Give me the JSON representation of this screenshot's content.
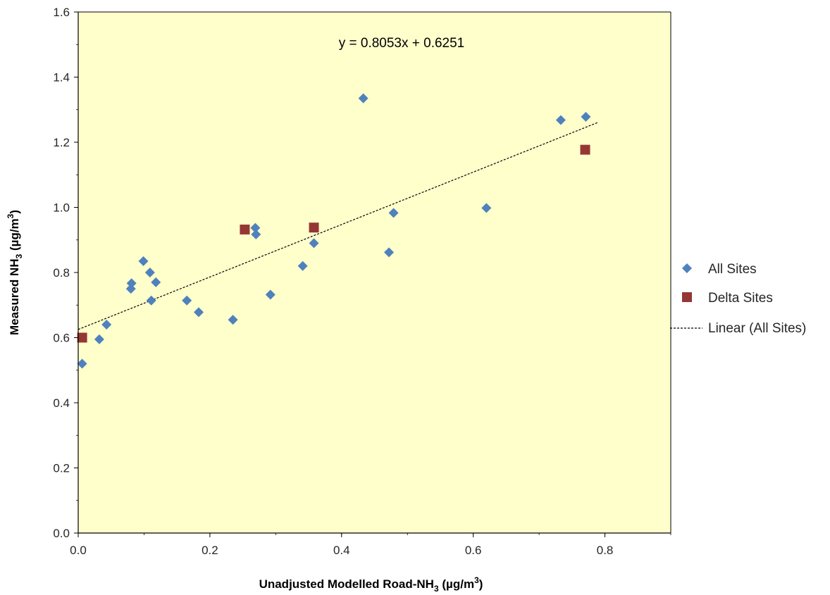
{
  "chart_data": {
    "type": "scatter",
    "xlabel": {
      "main": "Unadjusted Modelled  Road-NH",
      "sub": "3",
      "unit": "  (µg/m",
      "sup": "3",
      "close": ")"
    },
    "ylabel": {
      "main": "Measured NH",
      "sub": "3",
      "unit": " (µg/m",
      "sup": "3",
      "close": ")"
    },
    "xlim": [
      0,
      0.9
    ],
    "ylim": [
      0,
      1.6
    ],
    "x_ticks": [
      "0.0",
      "0.2",
      "0.4",
      "0.6",
      "0.8"
    ],
    "x_tick_values": [
      0,
      0.2,
      0.4,
      0.6,
      0.8
    ],
    "y_ticks": [
      "0.0",
      "0.2",
      "0.4",
      "0.6",
      "0.8",
      "1.0",
      "1.2",
      "1.4",
      "1.6"
    ],
    "y_tick_values": [
      0,
      0.2,
      0.4,
      0.6,
      0.8,
      1.0,
      1.2,
      1.4,
      1.6
    ],
    "grid": false,
    "plot_background": "#FFFFCC",
    "legend_position": "right",
    "annotation": "y = 0.8053x + 0.6251",
    "series": [
      {
        "name": "All Sites",
        "marker": "diamond",
        "color": "#4F81BD",
        "points": [
          [
            0.006,
            0.52
          ],
          [
            0.006,
            0.6
          ],
          [
            0.032,
            0.595
          ],
          [
            0.043,
            0.64
          ],
          [
            0.08,
            0.75
          ],
          [
            0.081,
            0.767
          ],
          [
            0.099,
            0.835
          ],
          [
            0.109,
            0.8
          ],
          [
            0.111,
            0.714
          ],
          [
            0.118,
            0.77
          ],
          [
            0.165,
            0.714
          ],
          [
            0.183,
            0.678
          ],
          [
            0.235,
            0.655
          ],
          [
            0.269,
            0.937
          ],
          [
            0.27,
            0.917
          ],
          [
            0.292,
            0.732
          ],
          [
            0.341,
            0.82
          ],
          [
            0.358,
            0.89
          ],
          [
            0.433,
            1.335
          ],
          [
            0.472,
            0.862
          ],
          [
            0.479,
            0.983
          ],
          [
            0.62,
            0.998
          ],
          [
            0.733,
            1.268
          ],
          [
            0.771,
            1.278
          ]
        ]
      },
      {
        "name": "Delta Sites",
        "marker": "square",
        "color": "#953735",
        "points": [
          [
            0.006,
            0.6
          ],
          [
            0.253,
            0.932
          ],
          [
            0.358,
            0.938
          ],
          [
            0.77,
            1.177
          ]
        ]
      }
    ],
    "trendline": {
      "name": "Linear (All Sites)",
      "slope": 0.8053,
      "intercept": 0.6251,
      "x_range": [
        0,
        0.79
      ],
      "color": "#000000",
      "style": "dashed"
    }
  }
}
